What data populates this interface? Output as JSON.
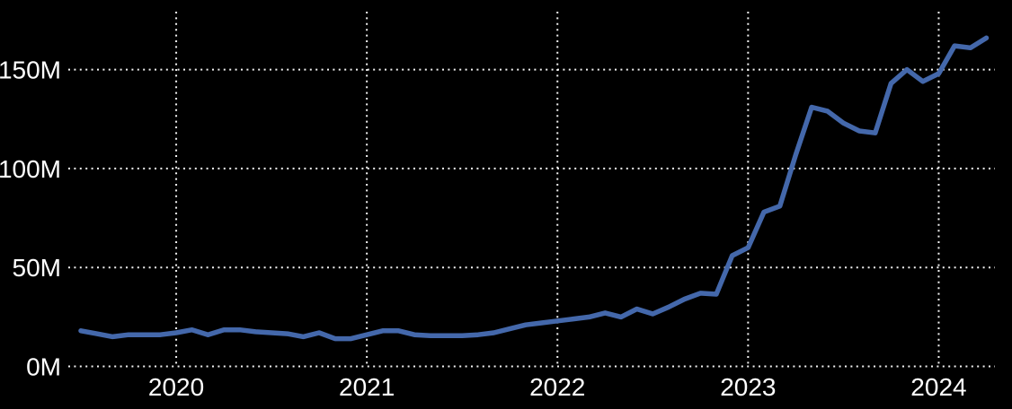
{
  "colors": {
    "background": "#000000",
    "line": "#4468ab",
    "grid": "#ffffff",
    "tick_text": "#ffffff"
  },
  "chart_data": {
    "type": "line",
    "unit": "millions (M)",
    "x": [
      "2019-07",
      "2019-08",
      "2019-09",
      "2019-10",
      "2019-11",
      "2019-12",
      "2020-01",
      "2020-02",
      "2020-03",
      "2020-04",
      "2020-05",
      "2020-06",
      "2020-07",
      "2020-08",
      "2020-09",
      "2020-10",
      "2020-11",
      "2020-12",
      "2021-01",
      "2021-02",
      "2021-03",
      "2021-04",
      "2021-05",
      "2021-06",
      "2021-07",
      "2021-08",
      "2021-09",
      "2021-10",
      "2021-11",
      "2021-12",
      "2022-01",
      "2022-02",
      "2022-03",
      "2022-04",
      "2022-05",
      "2022-06",
      "2022-07",
      "2022-08",
      "2022-09",
      "2022-10",
      "2022-11",
      "2022-12",
      "2023-01",
      "2023-02",
      "2023-03",
      "2023-04",
      "2023-05",
      "2023-06",
      "2023-07",
      "2023-08",
      "2023-09",
      "2023-10",
      "2023-11",
      "2023-12",
      "2024-01",
      "2024-02",
      "2024-03",
      "2024-04"
    ],
    "values": [
      18,
      16.5,
      15,
      16,
      16,
      16,
      17,
      18.5,
      16,
      18.5,
      18.5,
      17.5,
      17,
      16.5,
      15,
      17,
      14,
      14,
      16,
      18,
      18,
      16,
      15.5,
      15.5,
      15.5,
      16,
      17,
      19,
      21,
      22,
      23,
      24,
      25,
      27,
      25,
      29,
      26.5,
      30,
      34,
      37,
      36.5,
      56,
      60,
      78,
      81,
      107,
      131,
      129,
      123,
      119,
      118,
      143,
      150,
      144,
      148,
      162,
      161,
      166
    ],
    "y_ticks": [
      {
        "label": "0M",
        "value": 0
      },
      {
        "label": "50M",
        "value": 50
      },
      {
        "label": "100M",
        "value": 100
      },
      {
        "label": "150M",
        "value": 150
      }
    ],
    "x_ticks": [
      {
        "label": "2020",
        "month": "2020-01"
      },
      {
        "label": "2021",
        "month": "2021-01"
      },
      {
        "label": "2022",
        "month": "2022-01"
      },
      {
        "label": "2023",
        "month": "2023-01"
      },
      {
        "label": "2024",
        "month": "2024-01"
      }
    ],
    "ylim": [
      0,
      179
    ],
    "grid": "dotted",
    "legend": "none",
    "title": ""
  }
}
